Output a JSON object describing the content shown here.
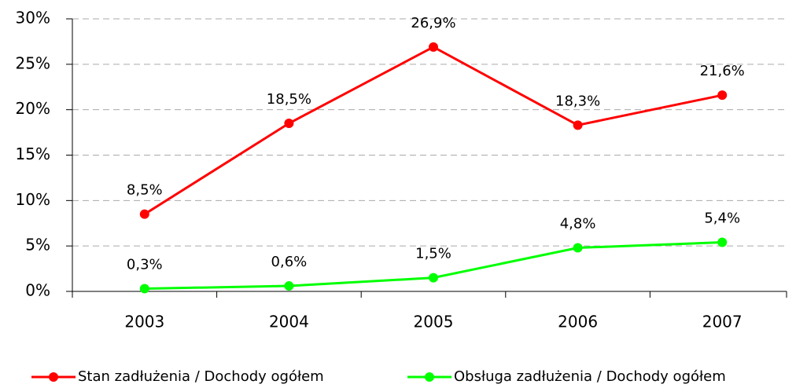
{
  "chart_data": {
    "type": "line",
    "categories": [
      "2003",
      "2004",
      "2005",
      "2006",
      "2007"
    ],
    "series": [
      {
        "name": "Stan zadłużenia / Dochody ogółem",
        "color": "#ff0000",
        "values": [
          8.5,
          18.5,
          26.9,
          18.3,
          21.6
        ],
        "value_labels": [
          "8,5%",
          "18,5%",
          "26,9%",
          "18,3%",
          "21,6%"
        ]
      },
      {
        "name": "Obsługa zadłużenia / Dochody ogółem",
        "color": "#00ff00",
        "values": [
          0.3,
          0.6,
          1.5,
          4.8,
          5.4
        ],
        "value_labels": [
          "0,3%",
          "0,6%",
          "1,5%",
          "4,8%",
          "5,4%"
        ]
      }
    ],
    "ylim": [
      0,
      30
    ],
    "yticks": [
      {
        "value": 0,
        "label": "0%"
      },
      {
        "value": 5,
        "label": "5%"
      },
      {
        "value": 10,
        "label": "10%"
      },
      {
        "value": 15,
        "label": "15%"
      },
      {
        "value": 20,
        "label": "20%"
      },
      {
        "value": 25,
        "label": "25%"
      },
      {
        "value": 30,
        "label": "30%"
      }
    ],
    "grid": true,
    "legend": "bottom"
  }
}
